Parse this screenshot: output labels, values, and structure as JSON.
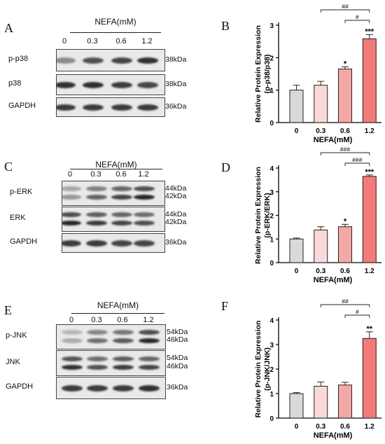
{
  "panels": {
    "A": {
      "letter": "A",
      "header": "NEFA(mM)",
      "lanes": [
        "0",
        "0.3",
        "0.6",
        "1.2"
      ],
      "rows": [
        {
          "protein": "p-p38",
          "kda": [
            "38kDa"
          ],
          "bands": [
            0.45,
            0.75,
            0.8,
            0.9
          ]
        },
        {
          "protein": "p38",
          "kda": [
            "38kDa"
          ],
          "bands": [
            0.9,
            0.9,
            0.85,
            0.8
          ]
        },
        {
          "protein": "GAPDH",
          "kda": [
            "36kDa"
          ],
          "bands": [
            0.85,
            0.85,
            0.85,
            0.85
          ]
        }
      ]
    },
    "C": {
      "letter": "C",
      "header": "NEFA(mM)",
      "lanes": [
        "0",
        "0.3",
        "0.6",
        "1.2"
      ],
      "rows": [
        {
          "protein": "p-ERK",
          "kda": [
            "44kDa",
            "42kDa"
          ],
          "bands": [
            0.4,
            0.65,
            0.8,
            0.95
          ]
        },
        {
          "protein": "ERK",
          "kda": [
            "44kDa",
            "42kDa"
          ],
          "bands": [
            0.95,
            0.85,
            0.8,
            0.75
          ]
        },
        {
          "protein": "GAPDH",
          "kda": [
            "36kDa"
          ],
          "bands": [
            0.85,
            0.85,
            0.8,
            0.8
          ]
        }
      ]
    },
    "E": {
      "letter": "E",
      "header": "NEFA(mM)",
      "lanes": [
        "0",
        "0.3",
        "0.6",
        "1.2"
      ],
      "rows": [
        {
          "protein": "p-JNK",
          "kda": [
            "54kDa",
            "46kDa"
          ],
          "bands": [
            0.3,
            0.6,
            0.7,
            0.95
          ]
        },
        {
          "protein": "JNK",
          "kda": [
            "54kDa",
            "46kDa"
          ],
          "bands": [
            0.9,
            0.75,
            0.85,
            0.8
          ]
        },
        {
          "protein": "GAPDH",
          "kda": [
            "36kDa"
          ],
          "bands": [
            0.85,
            0.85,
            0.85,
            0.9
          ]
        }
      ]
    }
  },
  "colors": {
    "bars": [
      "#d9d9d9",
      "#fbd9d9",
      "#f4a7a7",
      "#f47a7a"
    ],
    "axis": "#000000"
  },
  "chart_data": [
    {
      "letter": "B",
      "type": "bar",
      "categories": [
        "0",
        "0.3",
        "0.6",
        "1.2"
      ],
      "values": [
        1.0,
        1.15,
        1.65,
        2.58
      ],
      "errors": [
        0.15,
        0.12,
        0.07,
        0.13
      ],
      "sig": [
        "",
        "",
        "*",
        "***"
      ],
      "ylabel": [
        "Relative Protein Expression",
        "(p-p38/p38)"
      ],
      "xlabel": "NEFA(mM)",
      "ylim": [
        0,
        3
      ],
      "yticks": [
        "0",
        "1",
        "2",
        "3"
      ],
      "brackets": [
        {
          "from": 1,
          "to": 3,
          "label": "##"
        },
        {
          "from": 2,
          "to": 3,
          "label": "#"
        }
      ]
    },
    {
      "letter": "D",
      "type": "bar",
      "categories": [
        "0",
        "0.3",
        "0.6",
        "1.2"
      ],
      "values": [
        1.0,
        1.38,
        1.52,
        3.65
      ],
      "errors": [
        0.04,
        0.14,
        0.1,
        0.06
      ],
      "sig": [
        "",
        "",
        "*",
        "***"
      ],
      "ylabel": [
        "Relative Protein Expression",
        "(p-ERK/ERK)"
      ],
      "xlabel": "NEFA(mM)",
      "ylim": [
        0,
        4
      ],
      "yticks": [
        "0",
        "1",
        "2",
        "3",
        "4"
      ],
      "brackets": [
        {
          "from": 1,
          "to": 3,
          "label": "###"
        },
        {
          "from": 2,
          "to": 3,
          "label": "###"
        }
      ]
    },
    {
      "letter": "F",
      "type": "bar",
      "categories": [
        "0",
        "0.3",
        "0.6",
        "1.2"
      ],
      "values": [
        1.0,
        1.3,
        1.35,
        3.25
      ],
      "errors": [
        0.04,
        0.17,
        0.11,
        0.27
      ],
      "sig": [
        "",
        "",
        "",
        "**"
      ],
      "ylabel": [
        "Relative Protein Expression",
        "(p-JNK/JNK)"
      ],
      "xlabel": "NEFA(mM)",
      "ylim": [
        0,
        4
      ],
      "yticks": [
        "0",
        "1",
        "2",
        "3",
        "4"
      ],
      "brackets": [
        {
          "from": 1,
          "to": 3,
          "label": "##"
        },
        {
          "from": 2,
          "to": 3,
          "label": "#"
        }
      ]
    }
  ]
}
